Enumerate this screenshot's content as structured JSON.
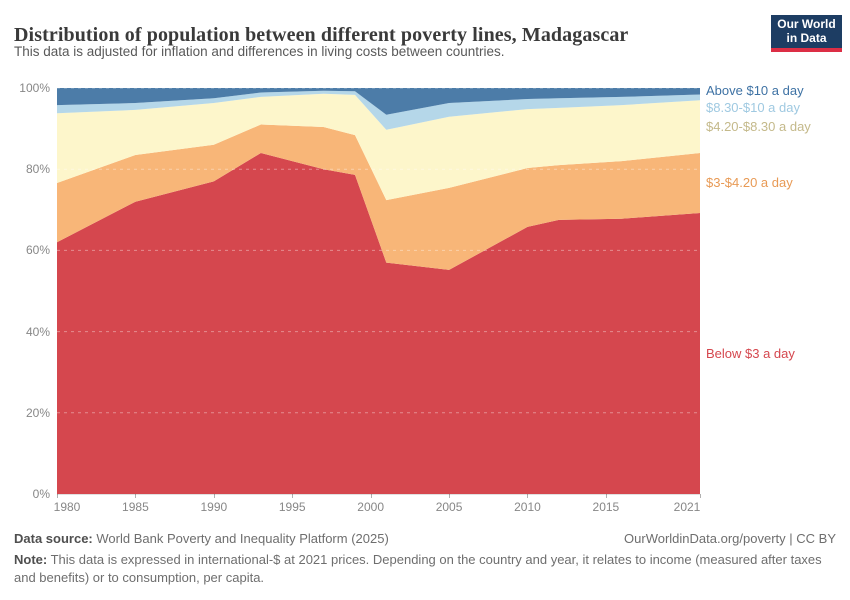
{
  "header": {
    "logo": {
      "line1": "Our World",
      "line2": "in Data",
      "bg_color": "#1d3d63",
      "bar_color": "#dc2e45"
    }
  },
  "chart_data": {
    "type": "area",
    "stacked": true,
    "unit": "%",
    "title": "Distribution of population between different poverty lines, Madagascar",
    "subtitle": "This data is adjusted for inflation and differences in living costs between countries.",
    "x": [
      1980,
      1985,
      1990,
      1993,
      1997,
      1999,
      2001,
      2005,
      2010,
      2012,
      2016,
      2021
    ],
    "series": [
      {
        "name": "Below $3 a day",
        "color": "#d5474e",
        "label_color": "#d5474e",
        "values": [
          62.0,
          72.0,
          77.0,
          84.0,
          80.0,
          78.6,
          57.0,
          55.2,
          65.8,
          67.5,
          67.8,
          69.2
        ]
      },
      {
        "name": "$3-$4.20 a day",
        "color": "#f8b678",
        "label_color": "#e89a55",
        "values": [
          14.6,
          11.5,
          9.0,
          7.0,
          10.4,
          9.8,
          15.4,
          20.2,
          14.5,
          13.5,
          14.2,
          14.8
        ]
      },
      {
        "name": "$4.20-$8.30 a day",
        "color": "#fdf6cb",
        "label_color": "#c4b98a",
        "values": [
          17.2,
          11.1,
          10.3,
          6.8,
          8.2,
          9.9,
          17.3,
          17.5,
          14.5,
          14.1,
          13.8,
          13.0
        ]
      },
      {
        "name": "$8.30-$10 a day",
        "color": "#b5d7e9",
        "label_color": "#9fc9e1",
        "values": [
          2.0,
          1.7,
          1.2,
          1.1,
          0.7,
          0.9,
          3.7,
          3.4,
          2.5,
          2.4,
          2.0,
          1.4
        ]
      },
      {
        "name": "Above $10 a day",
        "color": "#4c7ca8",
        "label_color": "#3e72a4",
        "values": [
          4.2,
          3.7,
          2.5,
          1.1,
          0.7,
          0.8,
          6.6,
          3.7,
          2.7,
          2.5,
          2.2,
          1.6
        ]
      }
    ],
    "ylim": [
      0,
      100
    ],
    "yticks": [
      "0%",
      "20%",
      "40%",
      "60%",
      "80%",
      "100%"
    ],
    "xticks": [
      1980,
      1985,
      1990,
      1995,
      2000,
      2005,
      2010,
      2015,
      2021
    ],
    "grid": "horizontal dashed white over areas",
    "legend_position": "right"
  },
  "footer": {
    "datasource_label": "Data source:",
    "datasource": "World Bank Poverty and Inequality Platform (2025)",
    "link": "OurWorldinData.org/poverty",
    "separator": "|",
    "license": "CC BY",
    "note_label": "Note:",
    "note": "This data is expressed in international-$ at 2021 prices. Depending on the country and year, it relates to income (measured after taxes and benefits) or to consumption, per capita."
  }
}
